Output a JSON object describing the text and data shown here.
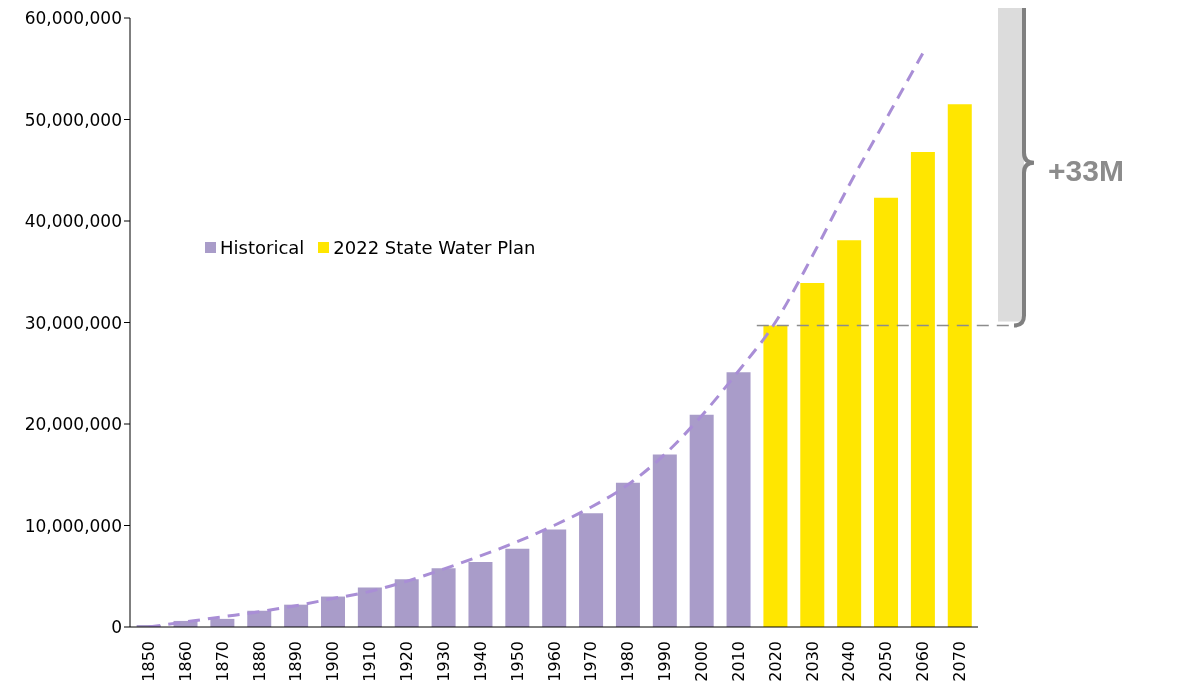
{
  "chart_data": {
    "type": "bar",
    "stacked": true,
    "categories": [
      "1850",
      "1860",
      "1870",
      "1880",
      "1890",
      "1900",
      "1910",
      "1920",
      "1930",
      "1940",
      "1950",
      "1960",
      "1970",
      "1980",
      "1990",
      "2000",
      "2010",
      "2020",
      "2030",
      "2040",
      "2050",
      "2060",
      "2070"
    ],
    "series": [
      {
        "name": "Historical",
        "color": "#a99cc9",
        "values": [
          200000,
          600000,
          800000,
          1600000,
          2200000,
          3000000,
          3900000,
          4700000,
          5800000,
          6400000,
          7700000,
          9600000,
          11200000,
          14200000,
          17000000,
          20900000,
          25100000,
          null,
          null,
          null,
          null,
          null,
          null
        ]
      },
      {
        "name": "2022 State Water Plan",
        "color": "#ffe600",
        "values": [
          null,
          null,
          null,
          null,
          null,
          null,
          null,
          null,
          null,
          null,
          null,
          null,
          null,
          null,
          null,
          null,
          null,
          29700000,
          33900000,
          38100000,
          42300000,
          46800000,
          51500000
        ]
      },
      {
        "type": "line",
        "color": "#a98ed6",
        "line_style": "dashed",
        "values": [
          0,
          500000,
          1000000,
          1500000,
          2100000,
          2800000,
          3500000,
          4500000,
          5700000,
          7000000,
          8400000,
          10000000,
          11800000,
          14000000,
          17000000,
          20800000,
          25200000,
          30000000,
          36500000,
          43500000,
          50000000,
          56500000,
          null
        ]
      }
    ],
    "ylim": [
      0,
      60000000
    ],
    "yticks": [
      0,
      {
        "value": 10000000,
        "label": "10,000,000"
      },
      {
        "value": 20000000,
        "label": "20,000,000"
      },
      {
        "value": 30000000,
        "label": "30,000,000"
      },
      {
        "value": 40000000,
        "label": "40,000,000"
      },
      {
        "value": 50000000,
        "label": "50,000,000"
      },
      {
        "value": 60000000,
        "label": "60,000,000"
      }
    ],
    "ref_lines": [
      {
        "axis": "y",
        "value": 29700000,
        "color": "#8c8c8c",
        "line_style": "dashed"
      }
    ],
    "annotations": [
      "+33M"
    ],
    "legend": "left"
  }
}
